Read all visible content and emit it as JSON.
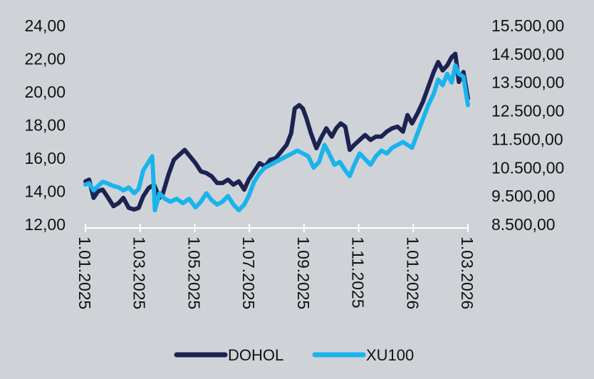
{
  "chart_data": {
    "type": "line",
    "title": "",
    "xlabel": "",
    "ylabel": "",
    "x_tick_labels": [
      "1.01.2025",
      "1.03.2025",
      "1.05.2025",
      "1.07.2025",
      "1.09.2025",
      "1.11.2025",
      "1.01.2026",
      "1.03.2026"
    ],
    "x_range": [
      "2025-01-01",
      "2026-03-01"
    ],
    "y_left": {
      "range": [
        12,
        24
      ],
      "tick_labels": [
        "12,00",
        "14,00",
        "16,00",
        "18,00",
        "20,00",
        "22,00",
        "24,00"
      ]
    },
    "y_right": {
      "range": [
        8500,
        15500
      ],
      "tick_labels": [
        "8.500,00",
        "9.500,00",
        "10.500,00",
        "11.500,00",
        "12.500,00",
        "13.500,00",
        "14.500,00",
        "15.500,00"
      ]
    },
    "grid": false,
    "legend_position": "bottom",
    "series": [
      {
        "name": "DOHOL",
        "axis": "left",
        "color": "#1c2350",
        "points": [
          [
            "2025-01-01",
            14.6
          ],
          [
            "2025-01-05",
            14.7
          ],
          [
            "2025-01-10",
            13.6
          ],
          [
            "2025-01-15",
            14.0
          ],
          [
            "2025-01-20",
            14.1
          ],
          [
            "2025-01-25",
            13.7
          ],
          [
            "2025-02-01",
            13.1
          ],
          [
            "2025-02-07",
            13.3
          ],
          [
            "2025-02-12",
            13.6
          ],
          [
            "2025-02-18",
            13.0
          ],
          [
            "2025-02-24",
            12.9
          ],
          [
            "2025-03-01",
            13.0
          ],
          [
            "2025-03-06",
            13.7
          ],
          [
            "2025-03-12",
            14.2
          ],
          [
            "2025-03-18",
            14.4
          ],
          [
            "2025-03-24",
            13.6
          ],
          [
            "2025-03-28",
            13.9
          ],
          [
            "2025-04-03",
            15.0
          ],
          [
            "2025-04-09",
            15.9
          ],
          [
            "2025-04-15",
            16.2
          ],
          [
            "2025-04-21",
            16.5
          ],
          [
            "2025-04-27",
            16.1
          ],
          [
            "2025-05-03",
            15.7
          ],
          [
            "2025-05-09",
            15.2
          ],
          [
            "2025-05-15",
            15.1
          ],
          [
            "2025-05-21",
            14.9
          ],
          [
            "2025-05-27",
            14.5
          ],
          [
            "2025-06-02",
            14.5
          ],
          [
            "2025-06-08",
            14.7
          ],
          [
            "2025-06-14",
            14.4
          ],
          [
            "2025-06-20",
            14.6
          ],
          [
            "2025-06-26",
            14.1
          ],
          [
            "2025-07-01",
            14.7
          ],
          [
            "2025-07-07",
            15.2
          ],
          [
            "2025-07-13",
            15.7
          ],
          [
            "2025-07-19",
            15.5
          ],
          [
            "2025-07-25",
            15.9
          ],
          [
            "2025-07-31",
            16.0
          ],
          [
            "2025-08-06",
            16.4
          ],
          [
            "2025-08-12",
            16.8
          ],
          [
            "2025-08-17",
            17.5
          ],
          [
            "2025-08-21",
            19.0
          ],
          [
            "2025-08-26",
            19.2
          ],
          [
            "2025-08-30",
            19.0
          ],
          [
            "2025-09-03",
            18.4
          ],
          [
            "2025-09-08",
            17.5
          ],
          [
            "2025-09-14",
            16.6
          ],
          [
            "2025-09-19",
            17.2
          ],
          [
            "2025-09-25",
            17.8
          ],
          [
            "2025-10-01",
            17.3
          ],
          [
            "2025-10-06",
            17.8
          ],
          [
            "2025-10-11",
            18.1
          ],
          [
            "2025-10-16",
            17.9
          ],
          [
            "2025-10-21",
            16.5
          ],
          [
            "2025-10-26",
            16.8
          ],
          [
            "2025-11-01",
            17.1
          ],
          [
            "2025-11-07",
            17.4
          ],
          [
            "2025-11-13",
            17.1
          ],
          [
            "2025-11-19",
            17.3
          ],
          [
            "2025-11-25",
            17.3
          ],
          [
            "2025-12-01",
            17.6
          ],
          [
            "2025-12-07",
            17.8
          ],
          [
            "2025-12-13",
            17.9
          ],
          [
            "2025-12-19",
            17.6
          ],
          [
            "2025-12-24",
            18.6
          ],
          [
            "2025-12-29",
            18.1
          ],
          [
            "2026-01-04",
            18.7
          ],
          [
            "2026-01-10",
            19.4
          ],
          [
            "2026-01-16",
            20.3
          ],
          [
            "2026-01-22",
            21.2
          ],
          [
            "2026-01-27",
            21.8
          ],
          [
            "2026-02-01",
            21.3
          ],
          [
            "2026-02-06",
            21.6
          ],
          [
            "2026-02-11",
            22.1
          ],
          [
            "2026-02-15",
            22.3
          ],
          [
            "2026-02-19",
            20.6
          ],
          [
            "2026-02-24",
            21.2
          ],
          [
            "2026-03-01",
            19.6
          ]
        ]
      },
      {
        "name": "XU100",
        "axis": "right",
        "color": "#1ab4ec",
        "points": [
          [
            "2025-01-01",
            9900
          ],
          [
            "2025-01-05",
            9950
          ],
          [
            "2025-01-10",
            9700
          ],
          [
            "2025-01-15",
            9850
          ],
          [
            "2025-01-20",
            10000
          ],
          [
            "2025-01-25",
            9950
          ],
          [
            "2025-02-01",
            9850
          ],
          [
            "2025-02-07",
            9800
          ],
          [
            "2025-02-12",
            9700
          ],
          [
            "2025-02-18",
            9800
          ],
          [
            "2025-02-24",
            9600
          ],
          [
            "2025-03-01",
            9750
          ],
          [
            "2025-03-06",
            10400
          ],
          [
            "2025-03-12",
            10700
          ],
          [
            "2025-03-16",
            10900
          ],
          [
            "2025-03-19",
            9000
          ],
          [
            "2025-03-24",
            9600
          ],
          [
            "2025-03-30",
            9400
          ],
          [
            "2025-04-05",
            9300
          ],
          [
            "2025-04-12",
            9400
          ],
          [
            "2025-04-19",
            9250
          ],
          [
            "2025-04-26",
            9400
          ],
          [
            "2025-05-03",
            9100
          ],
          [
            "2025-05-09",
            9300
          ],
          [
            "2025-05-15",
            9600
          ],
          [
            "2025-05-21",
            9350
          ],
          [
            "2025-05-27",
            9200
          ],
          [
            "2025-06-02",
            9300
          ],
          [
            "2025-06-08",
            9500
          ],
          [
            "2025-06-14",
            9200
          ],
          [
            "2025-06-20",
            9000
          ],
          [
            "2025-06-26",
            9200
          ],
          [
            "2025-07-01",
            9500
          ],
          [
            "2025-07-07",
            10000
          ],
          [
            "2025-07-13",
            10300
          ],
          [
            "2025-07-19",
            10500
          ],
          [
            "2025-07-25",
            10600
          ],
          [
            "2025-07-31",
            10700
          ],
          [
            "2025-08-06",
            10800
          ],
          [
            "2025-08-12",
            10900
          ],
          [
            "2025-08-18",
            11000
          ],
          [
            "2025-08-24",
            11100
          ],
          [
            "2025-08-30",
            11000
          ],
          [
            "2025-09-05",
            10900
          ],
          [
            "2025-09-11",
            10500
          ],
          [
            "2025-09-17",
            10700
          ],
          [
            "2025-09-23",
            11300
          ],
          [
            "2025-09-28",
            11000
          ],
          [
            "2025-10-04",
            10600
          ],
          [
            "2025-10-10",
            10700
          ],
          [
            "2025-10-16",
            10400
          ],
          [
            "2025-10-21",
            10200
          ],
          [
            "2025-10-26",
            10600
          ],
          [
            "2025-11-01",
            11000
          ],
          [
            "2025-11-07",
            10800
          ],
          [
            "2025-11-13",
            10600
          ],
          [
            "2025-11-19",
            10900
          ],
          [
            "2025-11-25",
            11100
          ],
          [
            "2025-12-01",
            11000
          ],
          [
            "2025-12-07",
            11200
          ],
          [
            "2025-12-13",
            11300
          ],
          [
            "2025-12-19",
            11400
          ],
          [
            "2025-12-24",
            11300
          ],
          [
            "2025-12-29",
            11200
          ],
          [
            "2026-01-04",
            11700
          ],
          [
            "2026-01-10",
            12200
          ],
          [
            "2026-01-16",
            12700
          ],
          [
            "2026-01-22",
            13100
          ],
          [
            "2026-01-27",
            13600
          ],
          [
            "2026-02-01",
            13400
          ],
          [
            "2026-02-06",
            13800
          ],
          [
            "2026-02-11",
            13500
          ],
          [
            "2026-02-15",
            14100
          ],
          [
            "2026-02-19",
            13800
          ],
          [
            "2026-02-24",
            13700
          ],
          [
            "2026-03-01",
            12700
          ]
        ]
      }
    ]
  }
}
